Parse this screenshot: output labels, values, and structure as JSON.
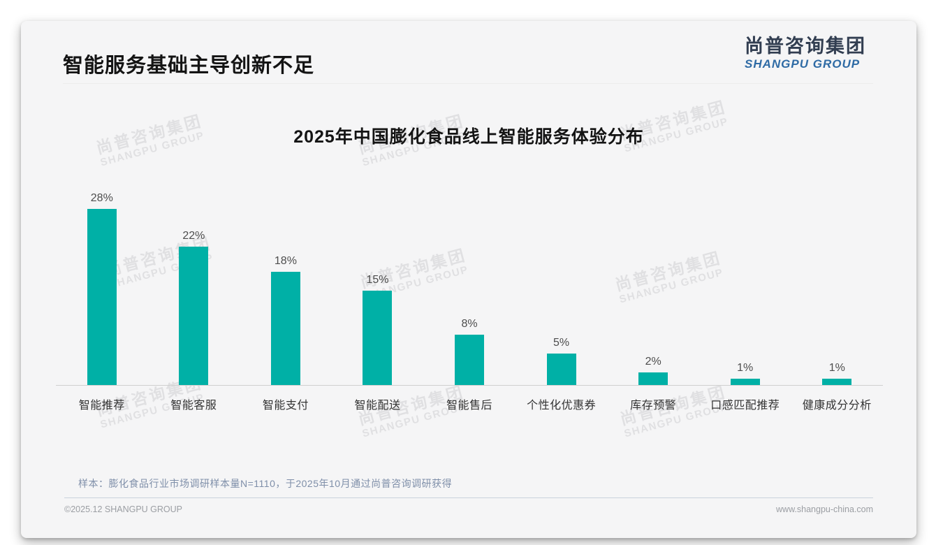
{
  "slide": {
    "title": "智能服务基础主导创新不足",
    "logo": {
      "cn": "尚普咨询集团",
      "en": "SHANGPU GROUP"
    },
    "watermark": {
      "cn": "尚普咨询集团",
      "en": "SHANGPU GROUP"
    },
    "footnote": "样本：膨化食品行业市场调研样本量N=1110，于2025年10月通过尚普咨询调研获得",
    "footer_left": "©2025.12 SHANGPU GROUP",
    "footer_right": "www.shangpu-china.com"
  },
  "colors": {
    "bar": "#00b0a6",
    "logo_cn": "#323e51",
    "logo_en": "#2f6ba5",
    "footnote": "#7f8fa9"
  },
  "chart_data": {
    "type": "bar",
    "title": "2025年中国膨化食品线上智能服务体验分布",
    "categories": [
      "智能推荐",
      "智能客服",
      "智能支付",
      "智能配送",
      "智能售后",
      "个性化优惠券",
      "库存预警",
      "口感匹配推荐",
      "健康成分分析"
    ],
    "values": [
      28,
      22,
      18,
      15,
      8,
      5,
      2,
      1,
      1
    ],
    "value_labels": [
      "28%",
      "22%",
      "18%",
      "15%",
      "8%",
      "5%",
      "2%",
      "1%",
      "1%"
    ],
    "unit": "%",
    "bar_color": "#00b0a6",
    "xlabel": "",
    "ylabel": "",
    "ylim": [
      0,
      30
    ],
    "grid": false,
    "legend": "none"
  }
}
